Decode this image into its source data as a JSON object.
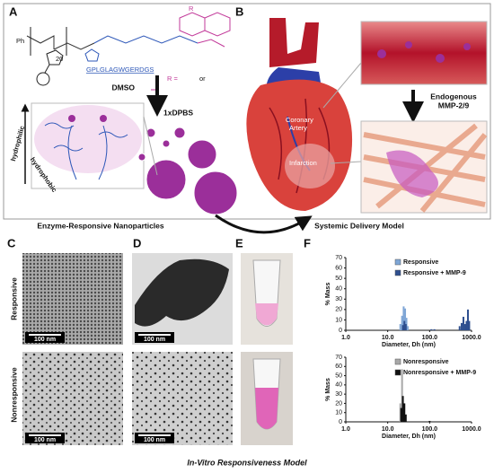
{
  "panel_labels": [
    "A",
    "B",
    "C",
    "D",
    "E",
    "F"
  ],
  "panel_a": {
    "end_group": "Ph",
    "subscript": "20",
    "peptide": "GPLGLAGWGERDGS",
    "r_group": "R",
    "r_def": "R =",
    "or": "or",
    "solvent1": "DMSO",
    "solvent2": "1xDPBS",
    "hydrophilic": "hydrophilic",
    "hydrophobic": "hydrophobic",
    "caption": "Enzyme-Responsive Nanoparticles"
  },
  "panel_b": {
    "vessel": [
      "Coronary",
      "Artery"
    ],
    "infarct": "Infarction",
    "enzyme": [
      "Endogenous",
      "MMP-2/9"
    ],
    "caption": "Systemic Delivery Model"
  },
  "row_labels": [
    "Responsive",
    "Nonresponsive"
  ],
  "scale_bars": [
    "100 nm",
    "100 nm",
    "100 nm",
    "100 nm"
  ],
  "footer": "In-Vitro Responsiveness Model",
  "chart_data": [
    {
      "type": "bar",
      "ylabel": "% Mass",
      "xlabel": "Diameter, Dh (nm)",
      "log_x": true,
      "xlim": [
        1,
        1000
      ],
      "xticks": [
        {
          "value": 1,
          "label": "1.0"
        },
        {
          "value": 10,
          "label": "10.0"
        },
        {
          "value": 100,
          "label": "100.0"
        },
        {
          "value": 1000,
          "label": "1000.0"
        }
      ],
      "ylim": [
        0,
        70
      ],
      "yticks": [
        0,
        10,
        20,
        30,
        40,
        50,
        60,
        70
      ],
      "series": [
        {
          "name": "Responsive",
          "color": "#7fa6d6",
          "x": [
            20,
            22,
            24,
            26,
            28,
            30
          ],
          "values": [
            6,
            14,
            23,
            21,
            12,
            4
          ]
        },
        {
          "name": "Responsive + MMP-9",
          "color": "#2e4f8f",
          "x": [
            23,
            25,
            27,
            110,
            130,
            520,
            580,
            640,
            700,
            760,
            820,
            880
          ],
          "values": [
            5,
            9,
            6,
            1,
            1,
            4,
            7,
            13,
            6,
            9,
            20,
            9
          ]
        }
      ]
    },
    {
      "type": "bar",
      "ylabel": "% Mass",
      "xlabel": "Diameter, Dh (nm)",
      "log_x": true,
      "xlim": [
        1,
        1000
      ],
      "xticks": [
        {
          "value": 1,
          "label": "1.0"
        },
        {
          "value": 10,
          "label": "10.0"
        },
        {
          "value": 100,
          "label": "100.0"
        },
        {
          "value": 1000,
          "label": "1000.0"
        }
      ],
      "ylim": [
        0,
        70
      ],
      "yticks": [
        0,
        10,
        20,
        30,
        40,
        50,
        60,
        70
      ],
      "series": [
        {
          "name": "Nonresponsive",
          "color": "#a8a8a8",
          "x": [
            20,
            22,
            24
          ],
          "values": [
            20,
            57,
            10
          ]
        },
        {
          "name": "Nonresponsive + MMP-9",
          "color": "#111111",
          "x": [
            21,
            23,
            25,
            27,
            100
          ],
          "values": [
            15,
            28,
            20,
            8,
            1
          ]
        }
      ]
    }
  ]
}
